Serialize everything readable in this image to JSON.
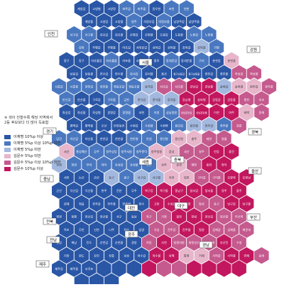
{
  "note": {
    "line1": "※ 색이 진할수록 해당 지역에서",
    "line2": "2등 후보보다 더 많이 득표함"
  },
  "legend": [
    {
      "label": "이재명 10%p 이상",
      "color": "#2a56a6"
    },
    {
      "label": "이재명 5%p 이상 10%p 미만",
      "color": "#4a78c0"
    },
    {
      "label": "이재명 5%p 미만",
      "color": "#a2b8de"
    },
    {
      "label": "김문수 5%p 미만",
      "color": "#e7b6cb"
    },
    {
      "label": "김문수 5%p 이상 10%p 미만",
      "color": "#c55a8e"
    },
    {
      "label": "김문수 10%p 이상",
      "color": "#c2175e"
    }
  ],
  "region_labels": [
    "인천",
    "강원",
    "경기",
    "서울",
    "충북",
    "충남",
    "세종",
    "대전",
    "경북",
    "울산",
    "전북",
    "대구",
    "광주",
    "부산",
    "전남",
    "경남",
    "제주"
  ],
  "districts": [
    "계양갑",
    "고양병",
    "고양정",
    "파주갑",
    "파주을",
    "동두천",
    "포천",
    "연천",
    "계양을",
    "고양갑",
    "고양을",
    "양주",
    "의정부갑",
    "의정부을",
    "남양주갑",
    "남양주을",
    "서구갑",
    "서구을",
    "김포갑",
    "김포을",
    "은평갑",
    "은평을",
    "도봉갑",
    "도봉을",
    "노원갑",
    "노원을",
    "강화",
    "부평갑",
    "부평을",
    "마포갑",
    "서대문갑",
    "성북갑",
    "성북을",
    "강북갑",
    "강북을",
    "가평",
    "중구",
    "동구",
    "미추홀갑",
    "미추홀을",
    "마포을",
    "서대문을",
    "종로",
    "동대문갑",
    "동대문을",
    "구리",
    "춘천갑",
    "춘천을",
    "남동갑",
    "남동을",
    "연수갑",
    "연수을",
    "강서갑",
    "강서을",
    "용산",
    "중구성동갑",
    "중구성동을",
    "광진갑",
    "광진을",
    "하남갑",
    "하남을",
    "시흥갑",
    "시흥을",
    "양천갑",
    "양천을",
    "영등포갑",
    "영등포을",
    "동작갑",
    "서초갑",
    "서초을",
    "강남갑",
    "강남을",
    "송파갑",
    "송파을",
    "원주갑",
    "원주을",
    "안산갑",
    "안산을",
    "구로갑",
    "구로을",
    "금천",
    "관악갑",
    "관악을",
    "동작을",
    "강남병",
    "송파병",
    "강동갑",
    "강동을",
    "홍천",
    "속초",
    "화성갑",
    "화성을",
    "화성병",
    "광명갑",
    "광명을",
    "과천",
    "의왕",
    "성남중원",
    "성남분당갑",
    "성남분당을",
    "이천",
    "여주",
    "태백",
    "동해",
    "평택갑",
    "평택을",
    "오산",
    "안양동안",
    "수원갑",
    "수원을",
    "수원병",
    "용인갑",
    "용인을",
    "광주갑",
    "광주을",
    "강릉",
    "당진",
    "아산갑",
    "아산을",
    "천안갑",
    "천안을",
    "천안병",
    "안성",
    "용인병",
    "용인정",
    "충주",
    "제천",
    "영월",
    "서산",
    "홍성예산",
    "공주",
    "청주상당",
    "청주서원",
    "청주흥덕",
    "청주청원",
    "음성",
    "괴산",
    "영주",
    "안동",
    "울진",
    "보령",
    "청양",
    "부여",
    "대덕",
    "유성갑",
    "유성을",
    "보은",
    "상주",
    "문경",
    "예천",
    "봉화",
    "영덕",
    "서천",
    "논산",
    "금산",
    "동구",
    "중구",
    "서구갑",
    "서구을",
    "옥천",
    "김천",
    "구미갑",
    "구미을",
    "포항북",
    "포항남",
    "군산",
    "익산갑",
    "익산을",
    "완주",
    "진안",
    "무주",
    "북구갑",
    "북구을",
    "중남구",
    "달서갑",
    "달서을",
    "경주",
    "울주",
    "김제",
    "정읍",
    "전주갑",
    "전주을",
    "전주병",
    "장수",
    "고창",
    "수성갑",
    "수성을",
    "달성",
    "동구",
    "남구갑",
    "남구을",
    "영광",
    "함평",
    "광산갑",
    "광산을",
    "서구",
    "동남",
    "북구",
    "거창",
    "합천",
    "창녕",
    "양산갑",
    "양산을",
    "부산북",
    "목포",
    "무안",
    "신안",
    "나주",
    "화순",
    "담양",
    "곡성",
    "진주갑",
    "진주을",
    "밀양",
    "김해갑",
    "김해을",
    "해운대",
    "영암",
    "해남",
    "진도",
    "순천갑",
    "순천을",
    "광양",
    "하동",
    "사천",
    "창원의창",
    "창원성산",
    "창원진해",
    "부산진",
    "수영",
    "기장",
    "완도",
    "강진",
    "장흥",
    "보성",
    "여수갑",
    "여수을",
    "남해",
    "통영",
    "거제",
    "사하갑",
    "사하을",
    "연제",
    "동래",
    "제주갑",
    "제주을",
    "서귀포"
  ]
}
